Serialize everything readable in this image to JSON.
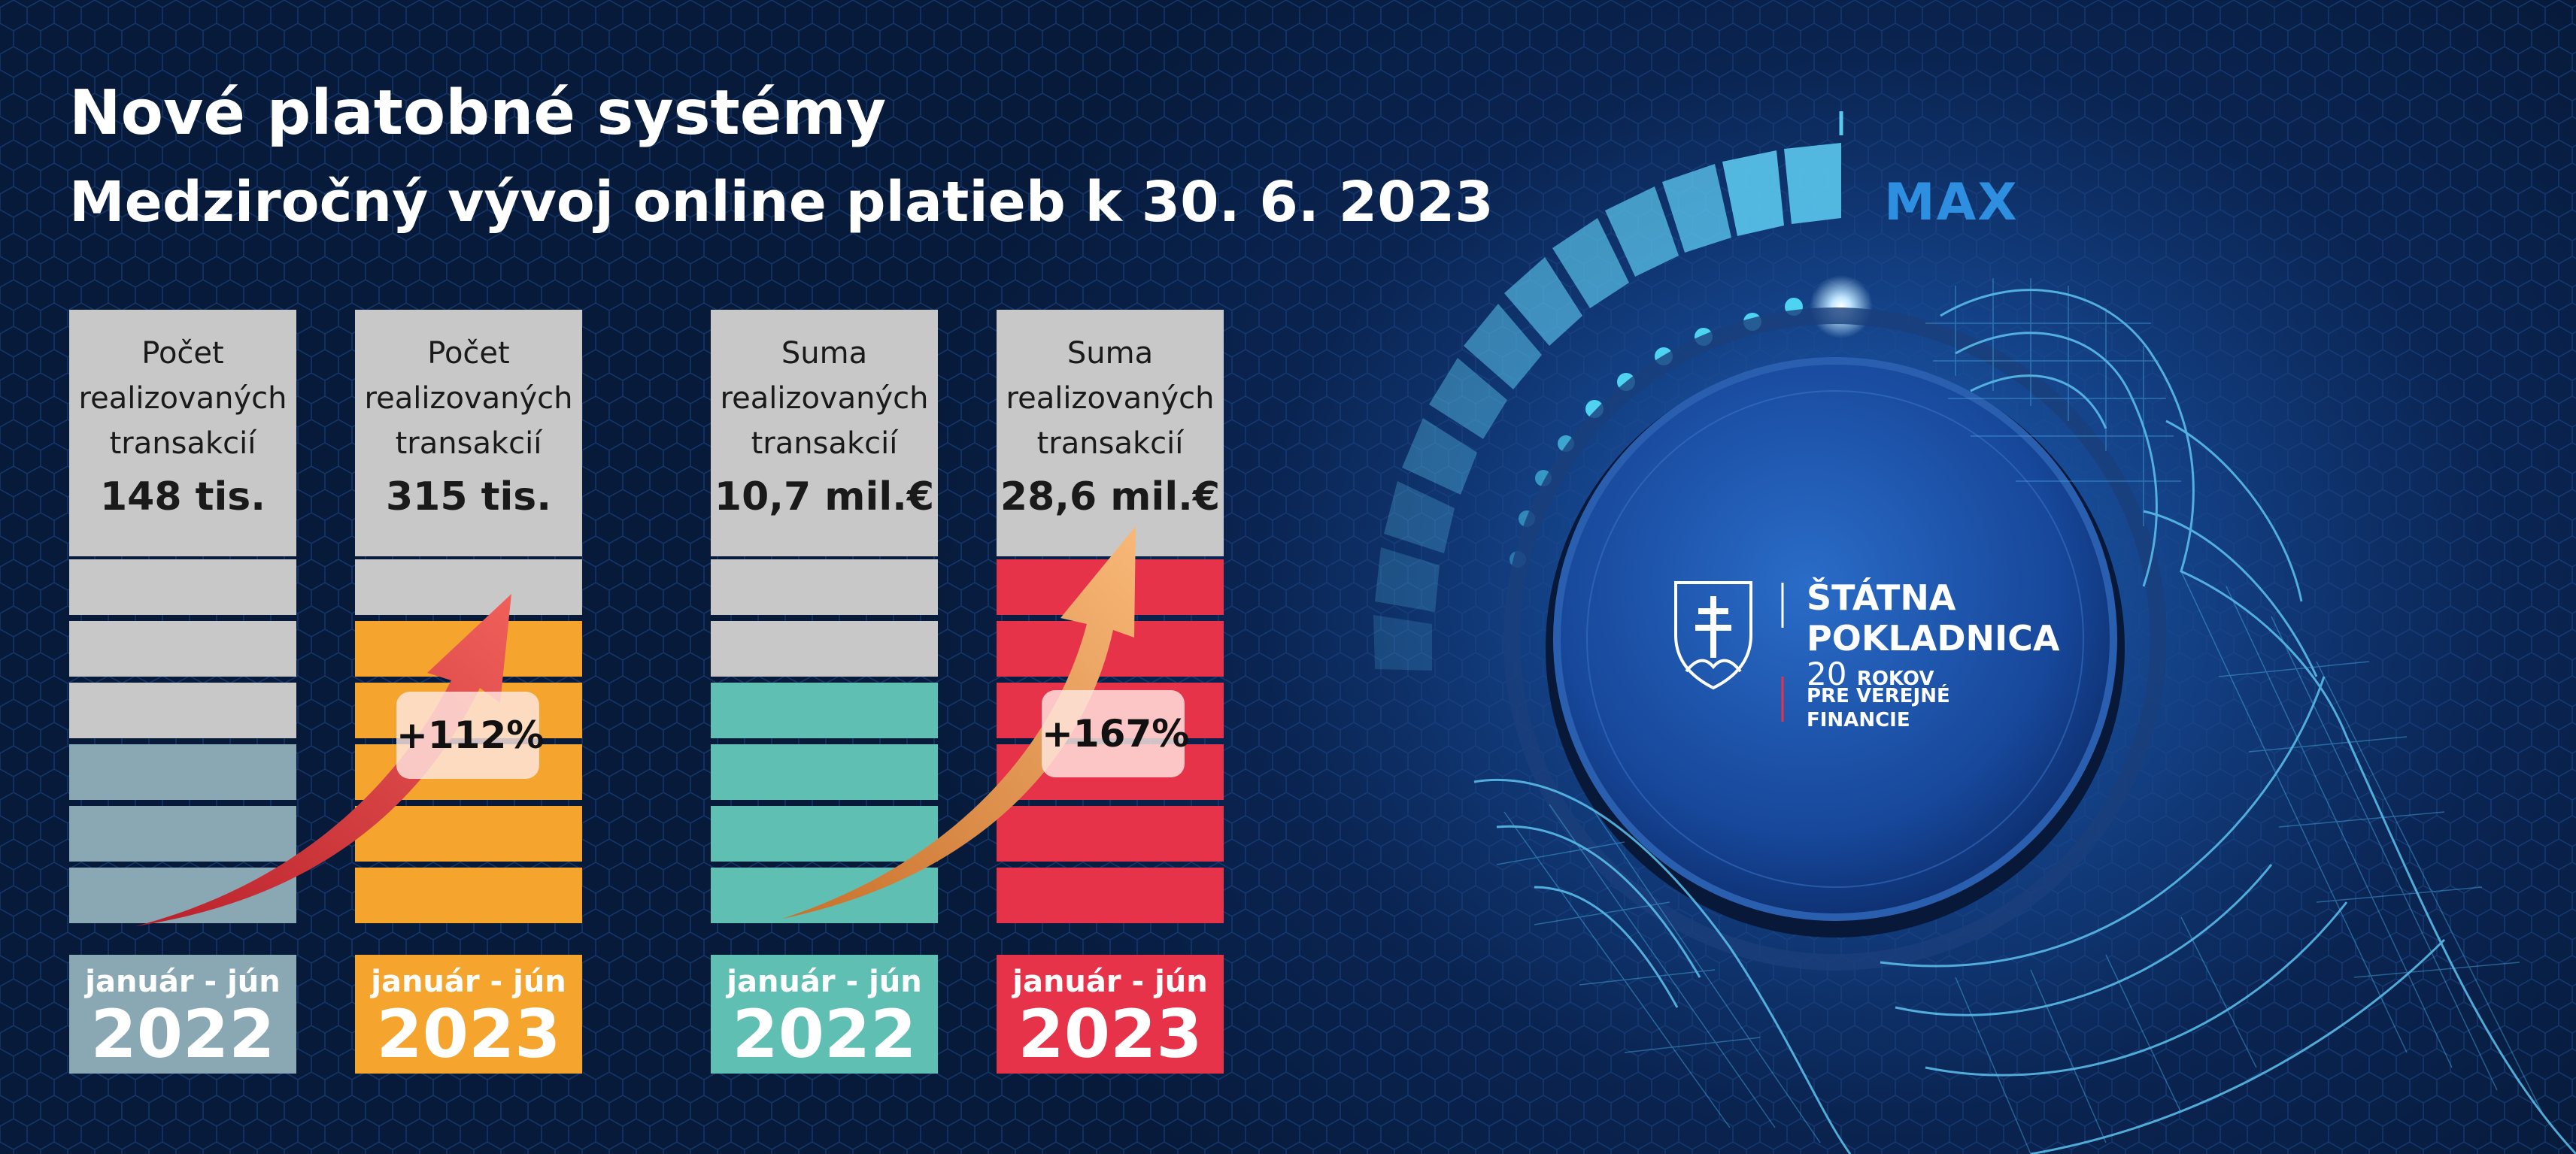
{
  "title": "Nové platobné systémy",
  "subtitle": "Medziročný vývoj online platieb k 30. 6. 2023",
  "colors": {
    "gray_header": "#c8c8c8",
    "steel_2022": "#8aa8b4",
    "orange_2023": "#f5a52e",
    "teal_2022": "#5fbfb2",
    "red_2023": "#e6334a",
    "arrow_red": "#e8483c",
    "arrow_orange": "#f4a464",
    "max_blue": "#2e8ee0"
  },
  "columns": [
    {
      "line1": "Počet",
      "line2": "realizovaných",
      "line3": "transakcií",
      "value": "148 tis.",
      "period": "január - jún",
      "year": "2022",
      "filled": 3
    },
    {
      "line1": "Počet",
      "line2": "realizovaných",
      "line3": "transakcií",
      "value": "315 tis.",
      "period": "január - jún",
      "year": "2023",
      "filled": 5
    },
    {
      "line1": "Suma",
      "line2": "realizovaných",
      "line3": "transakcií",
      "value": "10,7 mil.€",
      "period": "január - jún",
      "year": "2022",
      "filled": 4
    },
    {
      "line1": "Suma",
      "line2": "realizovaných",
      "line3": "transakcií",
      "value": "28,6 mil.€",
      "period": "január - jún",
      "year": "2023",
      "filled": 6
    }
  ],
  "growth": {
    "count": "+112%",
    "sum": "+167%"
  },
  "dial": {
    "max_label": "MAX"
  },
  "logo": {
    "line1": "ŠTÁTNA",
    "line2": "POKLADNICA",
    "years_number": "20",
    "years_word": "ROKOV",
    "sub1": "PRE VEREJNÉ",
    "sub2": "FINANCIE",
    "icon": "slovak-coat-of-arms-icon"
  }
}
